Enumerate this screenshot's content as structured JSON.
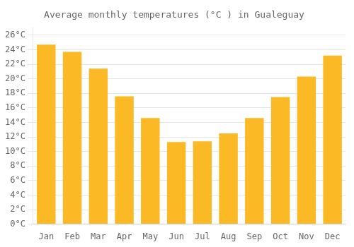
{
  "chart_data": {
    "type": "bar",
    "title": "Average monthly temperatures (°C ) in Gualeguay",
    "categories": [
      "Jan",
      "Feb",
      "Mar",
      "Apr",
      "May",
      "Jun",
      "Jul",
      "Aug",
      "Sep",
      "Oct",
      "Nov",
      "Dec"
    ],
    "values": [
      24.7,
      23.7,
      21.4,
      17.6,
      14.6,
      11.3,
      11.4,
      12.5,
      14.6,
      17.5,
      20.3,
      23.2
    ],
    "color": "#FBBA25",
    "ylim": [
      0,
      27
    ],
    "yticks": [
      {
        "value": 0,
        "label": "0°C"
      },
      {
        "value": 2,
        "label": "2°C"
      },
      {
        "value": 4,
        "label": "4°C"
      },
      {
        "value": 6,
        "label": "6°C"
      },
      {
        "value": 8,
        "label": "8°C"
      },
      {
        "value": 10,
        "label": "10°C"
      },
      {
        "value": 12,
        "label": "12°C"
      },
      {
        "value": 14,
        "label": "14°C"
      },
      {
        "value": 16,
        "label": "16°C"
      },
      {
        "value": 18,
        "label": "18°C"
      },
      {
        "value": 20,
        "label": "20°C"
      },
      {
        "value": 22,
        "label": "22°C"
      },
      {
        "value": 24,
        "label": "24°C"
      },
      {
        "value": 26,
        "label": "26°C"
      }
    ],
    "grid": true
  }
}
